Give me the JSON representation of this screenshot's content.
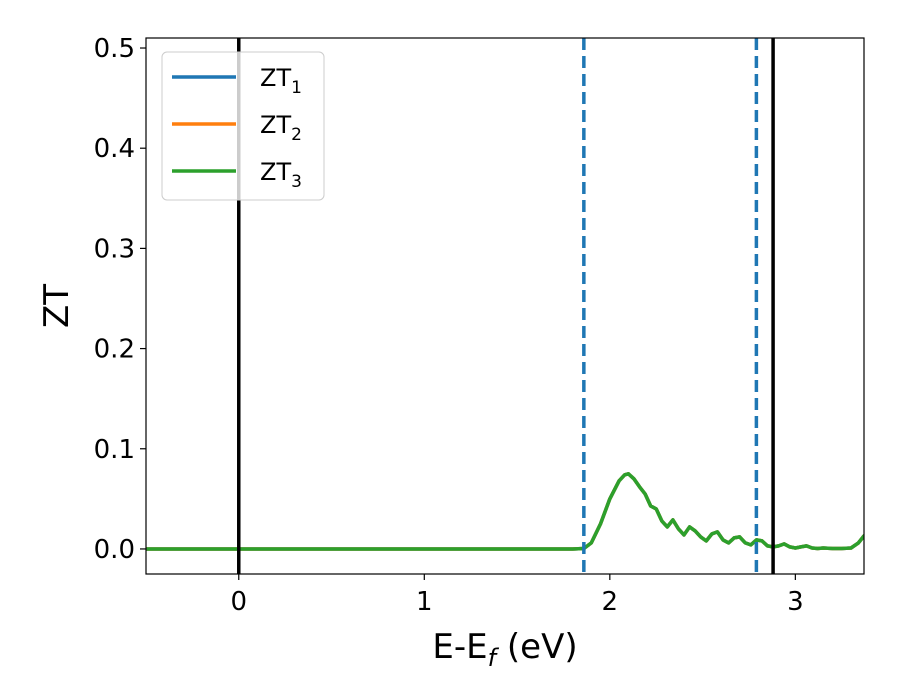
{
  "chart_data": {
    "type": "line",
    "xlabel_main": "E-E",
    "xlabel_sub": "f",
    "xlabel_unit": " (eV)",
    "ylabel": "ZT",
    "xlim": [
      -0.5,
      3.37
    ],
    "ylim": [
      -0.025,
      0.51
    ],
    "xticks": [
      0,
      1,
      2,
      3
    ],
    "xtick_labels": [
      "0",
      "1",
      "2",
      "3"
    ],
    "yticks": [
      0.0,
      0.1,
      0.2,
      0.3,
      0.4,
      0.5
    ],
    "ytick_labels": [
      "0.0",
      "0.1",
      "0.2",
      "0.3",
      "0.4",
      "0.5"
    ],
    "grid": false,
    "legend_position": "top-left",
    "vertical_lines": [
      {
        "x": 0.0,
        "style": "solid",
        "color": "#000000"
      },
      {
        "x": 2.88,
        "style": "solid",
        "color": "#000000"
      },
      {
        "x": 1.86,
        "style": "dashed",
        "color": "#1f77b4"
      },
      {
        "x": 2.79,
        "style": "dashed",
        "color": "#1f77b4"
      }
    ],
    "x": [
      -0.5,
      0.0,
      0.5,
      1.0,
      1.5,
      1.8,
      1.86,
      1.9,
      1.95,
      2.0,
      2.05,
      2.08,
      2.1,
      2.13,
      2.16,
      2.19,
      2.22,
      2.25,
      2.28,
      2.31,
      2.34,
      2.37,
      2.4,
      2.43,
      2.46,
      2.49,
      2.52,
      2.55,
      2.58,
      2.61,
      2.64,
      2.67,
      2.7,
      2.73,
      2.76,
      2.79,
      2.82,
      2.85,
      2.88,
      2.91,
      2.94,
      2.97,
      3.0,
      3.03,
      3.06,
      3.09,
      3.12,
      3.15,
      3.2,
      3.25,
      3.3,
      3.34,
      3.37
    ],
    "series": [
      {
        "name": "ZT",
        "sub": "1",
        "color": "#1f77b4",
        "values": [
          0,
          0,
          0,
          0,
          0,
          0,
          0.0005,
          0.006,
          0.025,
          0.05,
          0.068,
          0.074,
          0.075,
          0.07,
          0.062,
          0.055,
          0.043,
          0.04,
          0.028,
          0.022,
          0.029,
          0.02,
          0.014,
          0.022,
          0.018,
          0.012,
          0.008,
          0.015,
          0.017,
          0.009,
          0.006,
          0.011,
          0.012,
          0.006,
          0.004,
          0.009,
          0.008,
          0.003,
          0.002,
          0.003,
          0.005,
          0.002,
          0.001,
          0.002,
          0.003,
          0.001,
          0.0005,
          0.001,
          0.0005,
          0.0005,
          0.001,
          0.006,
          0.013
        ]
      },
      {
        "name": "ZT",
        "sub": "2",
        "color": "#ff7f0e",
        "values": [
          0,
          0,
          0,
          0,
          0,
          0,
          0.0005,
          0.006,
          0.025,
          0.05,
          0.068,
          0.074,
          0.075,
          0.07,
          0.062,
          0.055,
          0.043,
          0.04,
          0.028,
          0.022,
          0.029,
          0.02,
          0.014,
          0.022,
          0.018,
          0.012,
          0.008,
          0.015,
          0.017,
          0.009,
          0.006,
          0.011,
          0.012,
          0.006,
          0.004,
          0.009,
          0.008,
          0.003,
          0.002,
          0.003,
          0.005,
          0.002,
          0.001,
          0.002,
          0.003,
          0.001,
          0.0005,
          0.001,
          0.0005,
          0.0005,
          0.001,
          0.006,
          0.013
        ]
      },
      {
        "name": "ZT",
        "sub": "3",
        "color": "#2ca02c",
        "values": [
          0,
          0,
          0,
          0,
          0,
          0,
          0.0005,
          0.006,
          0.025,
          0.05,
          0.068,
          0.074,
          0.075,
          0.07,
          0.062,
          0.055,
          0.043,
          0.04,
          0.028,
          0.022,
          0.029,
          0.02,
          0.014,
          0.022,
          0.018,
          0.012,
          0.008,
          0.015,
          0.017,
          0.009,
          0.006,
          0.011,
          0.012,
          0.006,
          0.004,
          0.009,
          0.008,
          0.003,
          0.002,
          0.003,
          0.005,
          0.002,
          0.001,
          0.002,
          0.003,
          0.001,
          0.0005,
          0.001,
          0.0005,
          0.0005,
          0.001,
          0.006,
          0.013
        ]
      }
    ]
  }
}
